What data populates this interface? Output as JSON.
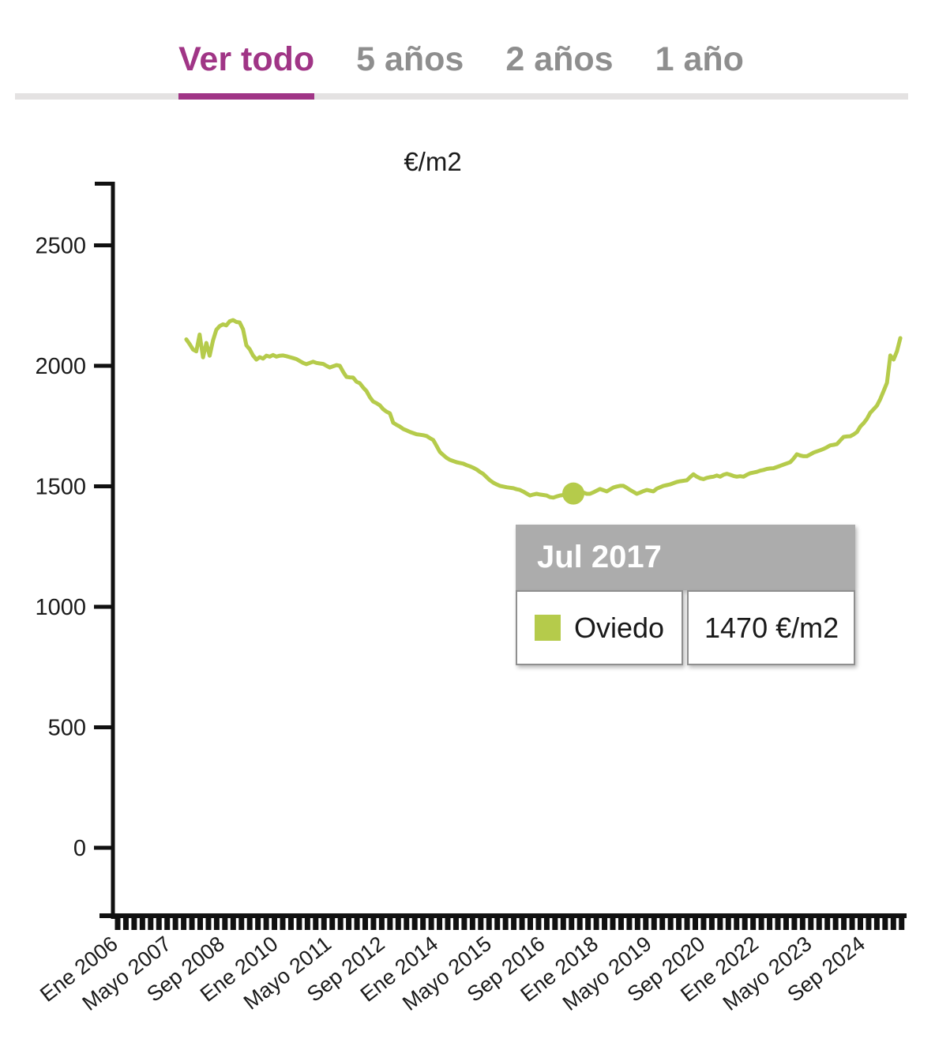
{
  "tabs": {
    "items": [
      {
        "label": "Ver todo",
        "active": true
      },
      {
        "label": "5 años",
        "active": false
      },
      {
        "label": "2 años",
        "active": false
      },
      {
        "label": "1 año",
        "active": false
      }
    ]
  },
  "tooltip": {
    "date_label": "Jul 2017",
    "series_label": "Oviedo",
    "value_label": "1470 €/m2"
  },
  "colors": {
    "accent": "#a03586",
    "series": "#b5cb4b",
    "inactive_tab": "#8e8e8e",
    "tab_track": "#e4e2e2",
    "tooltip_header": "#acacac",
    "axis": "#111111"
  },
  "chart_data": {
    "type": "line",
    "title": "€/m2",
    "unit": "€/m2",
    "grid": false,
    "legend_position": "tooltip",
    "y_ticks": [
      0,
      500,
      1000,
      1500,
      2000,
      2500
    ],
    "ylim": [
      -280,
      2760
    ],
    "x_axis_start": "2006-01",
    "x_label_interval_months": 16,
    "x_tick_labels": [
      "Ene 2006",
      "Mayo 2007",
      "Sep 2008",
      "Ene 2010",
      "Mayo 2011",
      "Sep 2012",
      "Ene 2014",
      "Mayo 2015",
      "Sep 2016",
      "Ene 2018",
      "Mayo 2019",
      "Sep 2020",
      "Ene 2022",
      "Mayo 2023",
      "Sep 2024"
    ],
    "highlight": {
      "series": "Oviedo",
      "date": "2017-07",
      "label": "Jul 2017",
      "value": 1470
    },
    "series": [
      {
        "name": "Oviedo",
        "start": "2007-11",
        "frequency": "monthly",
        "values": [
          2110,
          2090,
          2068,
          2060,
          2130,
          2035,
          2095,
          2042,
          2105,
          2150,
          2165,
          2172,
          2168,
          2185,
          2190,
          2182,
          2180,
          2151,
          2085,
          2069,
          2043,
          2026,
          2036,
          2030,
          2042,
          2038,
          2045,
          2038,
          2042,
          2043,
          2040,
          2036,
          2032,
          2028,
          2020,
          2012,
          2007,
          2012,
          2017,
          2012,
          2010,
          2008,
          2000,
          1993,
          1998,
          2003,
          2000,
          1975,
          1954,
          1952,
          1951,
          1934,
          1928,
          1910,
          1895,
          1870,
          1852,
          1845,
          1836,
          1820,
          1810,
          1803,
          1764,
          1755,
          1748,
          1738,
          1732,
          1726,
          1721,
          1716,
          1714,
          1712,
          1709,
          1700,
          1692,
          1668,
          1643,
          1630,
          1618,
          1610,
          1605,
          1600,
          1597,
          1594,
          1588,
          1583,
          1577,
          1570,
          1560,
          1551,
          1538,
          1525,
          1515,
          1508,
          1502,
          1499,
          1496,
          1494,
          1492,
          1488,
          1485,
          1478,
          1470,
          1462,
          1466,
          1469,
          1466,
          1464,
          1462,
          1455,
          1453,
          1458,
          1462,
          1464,
          1466,
          1468,
          1470,
          1475,
          1479,
          1474,
          1469,
          1469,
          1475,
          1482,
          1489,
          1484,
          1479,
          1487,
          1495,
          1499,
          1502,
          1502,
          1494,
          1485,
          1477,
          1469,
          1474,
          1480,
          1485,
          1482,
          1479,
          1490,
          1496,
          1502,
          1505,
          1508,
          1513,
          1518,
          1521,
          1523,
          1525,
          1538,
          1550,
          1540,
          1533,
          1530,
          1535,
          1538,
          1540,
          1545,
          1540,
          1548,
          1552,
          1548,
          1543,
          1540,
          1542,
          1540,
          1548,
          1554,
          1557,
          1560,
          1565,
          1568,
          1572,
          1574,
          1575,
          1580,
          1585,
          1590,
          1595,
          1600,
          1615,
          1633,
          1628,
          1625,
          1625,
          1632,
          1640,
          1645,
          1650,
          1655,
          1662,
          1670,
          1672,
          1675,
          1690,
          1705,
          1707,
          1708,
          1715,
          1725,
          1748,
          1762,
          1780,
          1805,
          1820,
          1835,
          1862,
          1895,
          1930,
          2043,
          2026,
          2060,
          2115
        ]
      }
    ]
  }
}
